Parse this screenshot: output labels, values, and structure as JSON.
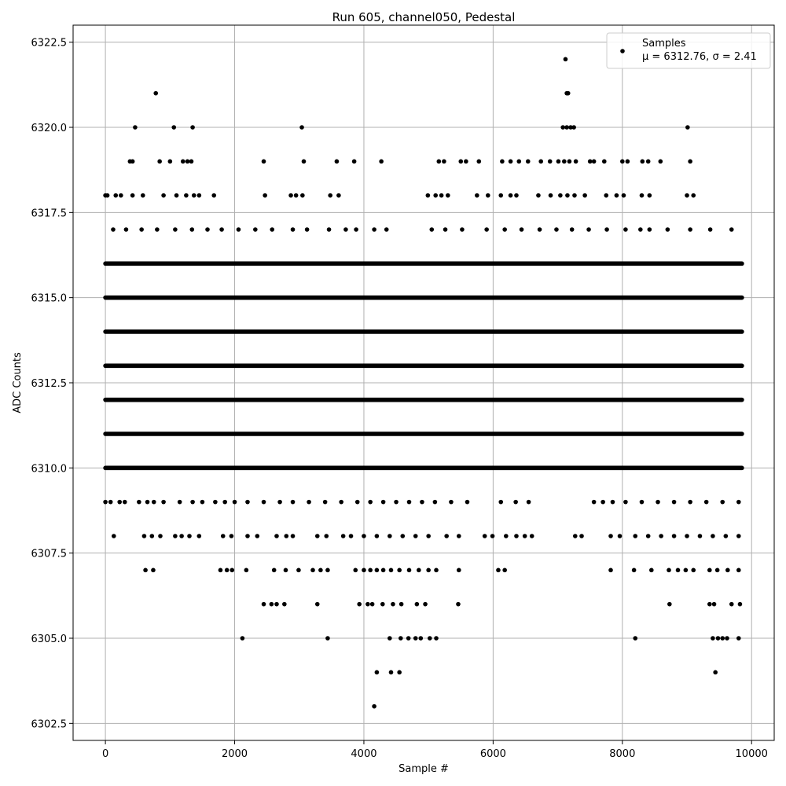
{
  "chart_data": {
    "type": "scatter",
    "title": "Run 605, channel050, Pedestal",
    "xlabel": "Sample #",
    "ylabel": "ADC Counts",
    "xlim": [
      -500,
      10350
    ],
    "ylim": [
      6302.0,
      6323.0
    ],
    "xticks": [
      0,
      2000,
      4000,
      6000,
      8000,
      10000
    ],
    "yticks": [
      6302.5,
      6305.0,
      6307.5,
      6310.0,
      6312.5,
      6315.0,
      6317.5,
      6320.0,
      6322.5
    ],
    "grid": true,
    "legend": {
      "placement": "top-right",
      "label": "Samples",
      "stats": "μ = 6312.76, σ = 2.41"
    },
    "colors": {
      "marker": "#000000",
      "grid": "#b0b0b0"
    },
    "series": [
      {
        "name": "Samples",
        "x_range": [
          0,
          9850
        ],
        "dense_levels": [
          6310,
          6311,
          6312,
          6313,
          6314,
          6315,
          6316
        ],
        "points": [
          [
            7120,
            6322
          ],
          [
            780,
            6321
          ],
          [
            7140,
            6321
          ],
          [
            7160,
            6321
          ],
          [
            460,
            6320
          ],
          [
            1060,
            6320
          ],
          [
            1350,
            6320
          ],
          [
            3040,
            6320
          ],
          [
            7080,
            6320
          ],
          [
            7140,
            6320
          ],
          [
            7200,
            6320
          ],
          [
            7250,
            6320
          ],
          [
            9010,
            6320
          ],
          [
            380,
            6319
          ],
          [
            420,
            6319
          ],
          [
            840,
            6319
          ],
          [
            1000,
            6319
          ],
          [
            1200,
            6319
          ],
          [
            1270,
            6319
          ],
          [
            1330,
            6319
          ],
          [
            2450,
            6319
          ],
          [
            3070,
            6319
          ],
          [
            3580,
            6319
          ],
          [
            3850,
            6319
          ],
          [
            4270,
            6319
          ],
          [
            5160,
            6319
          ],
          [
            5240,
            6319
          ],
          [
            5500,
            6319
          ],
          [
            5580,
            6319
          ],
          [
            5780,
            6319
          ],
          [
            6140,
            6319
          ],
          [
            6270,
            6319
          ],
          [
            6400,
            6319
          ],
          [
            6540,
            6319
          ],
          [
            6740,
            6319
          ],
          [
            6880,
            6319
          ],
          [
            7010,
            6319
          ],
          [
            7100,
            6319
          ],
          [
            7180,
            6319
          ],
          [
            7280,
            6319
          ],
          [
            7500,
            6319
          ],
          [
            7560,
            6319
          ],
          [
            7720,
            6319
          ],
          [
            8000,
            6319
          ],
          [
            8080,
            6319
          ],
          [
            8310,
            6319
          ],
          [
            8400,
            6319
          ],
          [
            8590,
            6319
          ],
          [
            9050,
            6319
          ],
          [
            0,
            6318
          ],
          [
            30,
            6318
          ],
          [
            160,
            6318
          ],
          [
            240,
            6318
          ],
          [
            420,
            6318
          ],
          [
            580,
            6318
          ],
          [
            900,
            6318
          ],
          [
            1100,
            6318
          ],
          [
            1250,
            6318
          ],
          [
            1370,
            6318
          ],
          [
            1450,
            6318
          ],
          [
            1680,
            6318
          ],
          [
            2470,
            6318
          ],
          [
            2870,
            6318
          ],
          [
            2950,
            6318
          ],
          [
            3050,
            6318
          ],
          [
            3480,
            6318
          ],
          [
            3610,
            6318
          ],
          [
            4990,
            6318
          ],
          [
            5110,
            6318
          ],
          [
            5200,
            6318
          ],
          [
            5300,
            6318
          ],
          [
            5750,
            6318
          ],
          [
            5920,
            6318
          ],
          [
            6120,
            6318
          ],
          [
            6270,
            6318
          ],
          [
            6360,
            6318
          ],
          [
            6700,
            6318
          ],
          [
            6890,
            6318
          ],
          [
            7040,
            6318
          ],
          [
            7150,
            6318
          ],
          [
            7260,
            6318
          ],
          [
            7420,
            6318
          ],
          [
            7750,
            6318
          ],
          [
            7910,
            6318
          ],
          [
            8020,
            6318
          ],
          [
            8300,
            6318
          ],
          [
            8420,
            6318
          ],
          [
            9000,
            6318
          ],
          [
            9100,
            6318
          ],
          [
            120,
            6317
          ],
          [
            320,
            6317
          ],
          [
            560,
            6317
          ],
          [
            800,
            6317
          ],
          [
            1080,
            6317
          ],
          [
            1340,
            6317
          ],
          [
            1580,
            6317
          ],
          [
            1800,
            6317
          ],
          [
            2060,
            6317
          ],
          [
            2320,
            6317
          ],
          [
            2580,
            6317
          ],
          [
            2900,
            6317
          ],
          [
            3120,
            6317
          ],
          [
            3460,
            6317
          ],
          [
            3720,
            6317
          ],
          [
            3880,
            6317
          ],
          [
            4160,
            6317
          ],
          [
            4350,
            6317
          ],
          [
            5050,
            6317
          ],
          [
            5260,
            6317
          ],
          [
            5520,
            6317
          ],
          [
            5900,
            6317
          ],
          [
            6180,
            6317
          ],
          [
            6440,
            6317
          ],
          [
            6720,
            6317
          ],
          [
            6980,
            6317
          ],
          [
            7220,
            6317
          ],
          [
            7480,
            6317
          ],
          [
            7760,
            6317
          ],
          [
            8050,
            6317
          ],
          [
            8280,
            6317
          ],
          [
            8420,
            6317
          ],
          [
            8700,
            6317
          ],
          [
            9050,
            6317
          ],
          [
            9360,
            6317
          ],
          [
            9690,
            6317
          ],
          [
            0,
            6309
          ],
          [
            80,
            6309
          ],
          [
            220,
            6309
          ],
          [
            300,
            6309
          ],
          [
            520,
            6309
          ],
          [
            650,
            6309
          ],
          [
            750,
            6309
          ],
          [
            900,
            6309
          ],
          [
            1150,
            6309
          ],
          [
            1350,
            6309
          ],
          [
            1500,
            6309
          ],
          [
            1700,
            6309
          ],
          [
            1850,
            6309
          ],
          [
            2000,
            6309
          ],
          [
            2200,
            6309
          ],
          [
            2450,
            6309
          ],
          [
            2700,
            6309
          ],
          [
            2900,
            6309
          ],
          [
            3150,
            6309
          ],
          [
            3400,
            6309
          ],
          [
            3650,
            6309
          ],
          [
            3900,
            6309
          ],
          [
            4100,
            6309
          ],
          [
            4300,
            6309
          ],
          [
            4500,
            6309
          ],
          [
            4700,
            6309
          ],
          [
            4900,
            6309
          ],
          [
            5100,
            6309
          ],
          [
            5350,
            6309
          ],
          [
            5600,
            6309
          ],
          [
            6120,
            6309
          ],
          [
            6350,
            6309
          ],
          [
            6550,
            6309
          ],
          [
            7560,
            6309
          ],
          [
            7700,
            6309
          ],
          [
            7850,
            6309
          ],
          [
            8050,
            6309
          ],
          [
            8300,
            6309
          ],
          [
            8550,
            6309
          ],
          [
            8800,
            6309
          ],
          [
            9050,
            6309
          ],
          [
            9300,
            6309
          ],
          [
            9550,
            6309
          ],
          [
            9800,
            6309
          ],
          [
            130,
            6308
          ],
          [
            600,
            6308
          ],
          [
            720,
            6308
          ],
          [
            850,
            6308
          ],
          [
            1080,
            6308
          ],
          [
            1180,
            6308
          ],
          [
            1300,
            6308
          ],
          [
            1450,
            6308
          ],
          [
            1820,
            6308
          ],
          [
            1950,
            6308
          ],
          [
            2200,
            6308
          ],
          [
            2350,
            6308
          ],
          [
            2650,
            6308
          ],
          [
            2800,
            6308
          ],
          [
            2900,
            6308
          ],
          [
            3280,
            6308
          ],
          [
            3420,
            6308
          ],
          [
            3680,
            6308
          ],
          [
            3800,
            6308
          ],
          [
            4000,
            6308
          ],
          [
            4200,
            6308
          ],
          [
            4400,
            6308
          ],
          [
            4600,
            6308
          ],
          [
            4800,
            6308
          ],
          [
            5000,
            6308
          ],
          [
            5280,
            6308
          ],
          [
            5470,
            6308
          ],
          [
            5870,
            6308
          ],
          [
            5990,
            6308
          ],
          [
            6200,
            6308
          ],
          [
            6360,
            6308
          ],
          [
            6490,
            6308
          ],
          [
            6600,
            6308
          ],
          [
            7270,
            6308
          ],
          [
            7370,
            6308
          ],
          [
            7820,
            6308
          ],
          [
            7960,
            6308
          ],
          [
            8200,
            6308
          ],
          [
            8400,
            6308
          ],
          [
            8600,
            6308
          ],
          [
            8800,
            6308
          ],
          [
            9000,
            6308
          ],
          [
            9200,
            6308
          ],
          [
            9400,
            6308
          ],
          [
            9600,
            6308
          ],
          [
            9800,
            6308
          ],
          [
            620,
            6307
          ],
          [
            740,
            6307
          ],
          [
            1780,
            6307
          ],
          [
            1880,
            6307
          ],
          [
            1960,
            6307
          ],
          [
            2180,
            6307
          ],
          [
            2610,
            6307
          ],
          [
            2790,
            6307
          ],
          [
            2990,
            6307
          ],
          [
            3210,
            6307
          ],
          [
            3330,
            6307
          ],
          [
            3440,
            6307
          ],
          [
            3870,
            6307
          ],
          [
            4000,
            6307
          ],
          [
            4100,
            6307
          ],
          [
            4200,
            6307
          ],
          [
            4300,
            6307
          ],
          [
            4420,
            6307
          ],
          [
            4550,
            6307
          ],
          [
            4700,
            6307
          ],
          [
            4850,
            6307
          ],
          [
            5000,
            6307
          ],
          [
            5120,
            6307
          ],
          [
            5470,
            6307
          ],
          [
            6080,
            6307
          ],
          [
            6180,
            6307
          ],
          [
            7820,
            6307
          ],
          [
            8180,
            6307
          ],
          [
            8450,
            6307
          ],
          [
            8720,
            6307
          ],
          [
            8860,
            6307
          ],
          [
            8980,
            6307
          ],
          [
            9100,
            6307
          ],
          [
            9350,
            6307
          ],
          [
            9470,
            6307
          ],
          [
            9630,
            6307
          ],
          [
            9800,
            6307
          ],
          [
            2450,
            6306
          ],
          [
            2570,
            6306
          ],
          [
            2650,
            6306
          ],
          [
            2770,
            6306
          ],
          [
            3280,
            6306
          ],
          [
            3930,
            6306
          ],
          [
            4060,
            6306
          ],
          [
            4130,
            6306
          ],
          [
            4290,
            6306
          ],
          [
            4450,
            6306
          ],
          [
            4580,
            6306
          ],
          [
            4820,
            6306
          ],
          [
            4950,
            6306
          ],
          [
            5460,
            6306
          ],
          [
            8730,
            6306
          ],
          [
            9350,
            6306
          ],
          [
            9420,
            6306
          ],
          [
            9690,
            6306
          ],
          [
            9820,
            6306
          ],
          [
            2120,
            6305
          ],
          [
            3440,
            6305
          ],
          [
            4400,
            6305
          ],
          [
            4570,
            6305
          ],
          [
            4690,
            6305
          ],
          [
            4800,
            6305
          ],
          [
            4880,
            6305
          ],
          [
            5020,
            6305
          ],
          [
            5120,
            6305
          ],
          [
            8200,
            6305
          ],
          [
            9400,
            6305
          ],
          [
            9480,
            6305
          ],
          [
            9550,
            6305
          ],
          [
            9620,
            6305
          ],
          [
            9800,
            6305
          ],
          [
            4200,
            6304
          ],
          [
            4420,
            6304
          ],
          [
            4550,
            6304
          ],
          [
            9440,
            6304
          ],
          [
            4160,
            6303
          ]
        ]
      }
    ]
  }
}
